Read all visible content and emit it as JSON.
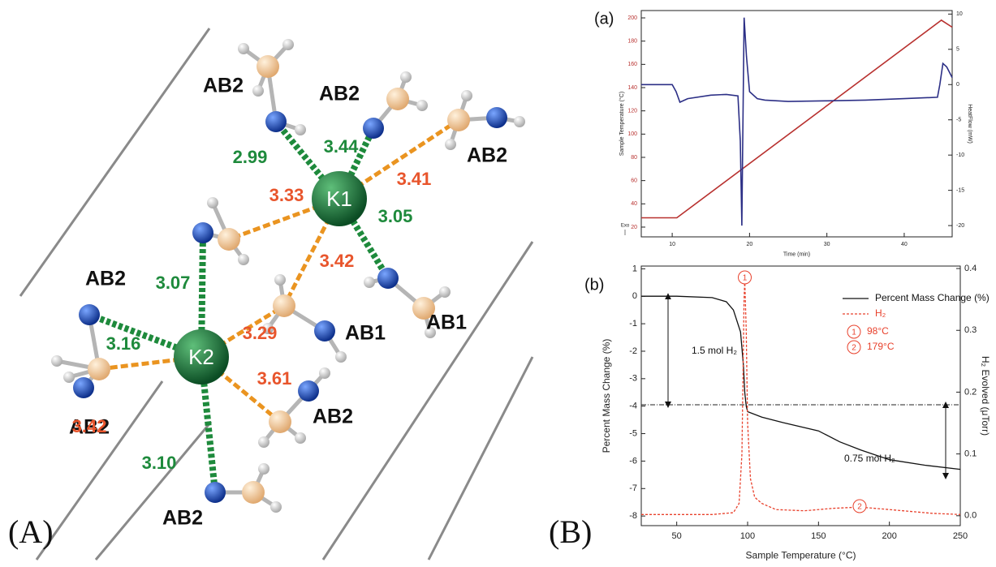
{
  "panel_a": {
    "label": "(A)",
    "centers": [
      "K1",
      "K2"
    ],
    "ligands": [
      "AB2",
      "AB2",
      "AB2",
      "AB2",
      "AB1",
      "AB1",
      "AB2",
      "AB2",
      "AB2"
    ],
    "distances": [
      "2.99",
      "3.44",
      "3.05",
      "3.07",
      "3.16",
      "3.10",
      "3.41",
      "3.33",
      "3.42",
      "3.29",
      "3.61",
      "3.42"
    ]
  },
  "panel_b": {
    "label": "(B)"
  },
  "chart_data": [
    {
      "type": "line",
      "panel_label": "(a)",
      "x_label": "Time (min)",
      "y_label": "Sample Temperature (°C)",
      "y2_label": "HeatFlow (mW)",
      "annotations": [
        "Exo"
      ],
      "xlim": [
        6,
        46.2
      ],
      "xticks": [
        10,
        20,
        30,
        40
      ],
      "ylim": [
        11.6,
        206.3
      ],
      "yticks": [
        20,
        40,
        60,
        80,
        100,
        120,
        140,
        160,
        180,
        200
      ],
      "y2lim": [
        -21.6,
        10.5
      ],
      "y2ticks": [
        10,
        5,
        0,
        -5,
        -10,
        -15,
        -20
      ],
      "series": [
        {
          "color": "#b8312f",
          "line_style": "solid",
          "x": [
            6,
            10.6,
            44.8,
            46.2
          ],
          "values": [
            28,
            28,
            198,
            192
          ]
        },
        {
          "color": "#2c2f86",
          "line_style": "solid",
          "axis": "y2",
          "x": [
            6,
            10,
            10.5,
            11,
            12,
            15,
            17,
            18.5,
            18.8,
            19.0,
            19.1,
            19.3,
            19.6,
            20,
            21,
            22,
            25,
            30,
            35,
            40,
            44.3,
            44.6,
            45,
            45.5,
            46.2
          ],
          "values": [
            0,
            0,
            -1,
            -2.5,
            -2,
            -1.5,
            -1.4,
            -1.6,
            -8,
            -20,
            -10,
            9.5,
            4,
            -1,
            -2,
            -2.2,
            -2.4,
            -2.3,
            -2.2,
            -2,
            -1.8,
            0,
            3,
            2.5,
            1
          ]
        }
      ]
    },
    {
      "type": "line",
      "panel_label": "(b)",
      "x_label": "Sample Temperature (°C)",
      "y_label": "Percent Mass Change (%)",
      "y2_label": "H₂ Evolved (μTorr)",
      "legend": "upper right",
      "xlim": [
        25,
        250
      ],
      "xticks": [
        50,
        100,
        150,
        200,
        250
      ],
      "ylim": [
        -8.35,
        1.1
      ],
      "yticks": [
        1,
        0,
        -1,
        -2,
        -3,
        -4,
        -5,
        -6,
        -7,
        -8
      ],
      "y2lim": [
        -0.016,
        0.404
      ],
      "y2ticks": [
        {
          "value": 0,
          "label": "0.0"
        },
        0.1,
        0.2,
        0.3,
        0.4
      ],
      "reference_line": -3.95,
      "texts": [
        "1.5 mol H₂",
        "0.75 mol H₂"
      ],
      "annotations": [
        {
          "marker": "1",
          "text": "98°C",
          "x": 98
        },
        {
          "marker": "2",
          "text": "179°C",
          "x": 179
        }
      ],
      "series": [
        {
          "name": "Percent Mass Change (%)",
          "color": "#111111",
          "line_style": "solid",
          "x": [
            25,
            50,
            75,
            85,
            90,
            95,
            97,
            98,
            99,
            100,
            110,
            125,
            150,
            165,
            180,
            200,
            225,
            250
          ],
          "values": [
            0,
            0,
            -0.05,
            -0.2,
            -0.5,
            -1.3,
            -2.5,
            -3.5,
            -4,
            -4.2,
            -4.4,
            -4.6,
            -4.9,
            -5.3,
            -5.6,
            -5.95,
            -6.15,
            -6.3
          ]
        },
        {
          "name": "H₂",
          "color": "#e8412c",
          "line_style": "dashed",
          "axis": "y2",
          "x": [
            25,
            75,
            90,
            94,
            96,
            97.5,
            98,
            99,
            100,
            102,
            105,
            110,
            120,
            140,
            160,
            179,
            200,
            230,
            250
          ],
          "values": [
            0.002,
            0.002,
            0.005,
            0.02,
            0.1,
            0.35,
            0.38,
            0.3,
            0.15,
            0.06,
            0.03,
            0.02,
            0.01,
            0.008,
            0.012,
            0.014,
            0.01,
            0.004,
            0.002
          ]
        }
      ]
    }
  ]
}
